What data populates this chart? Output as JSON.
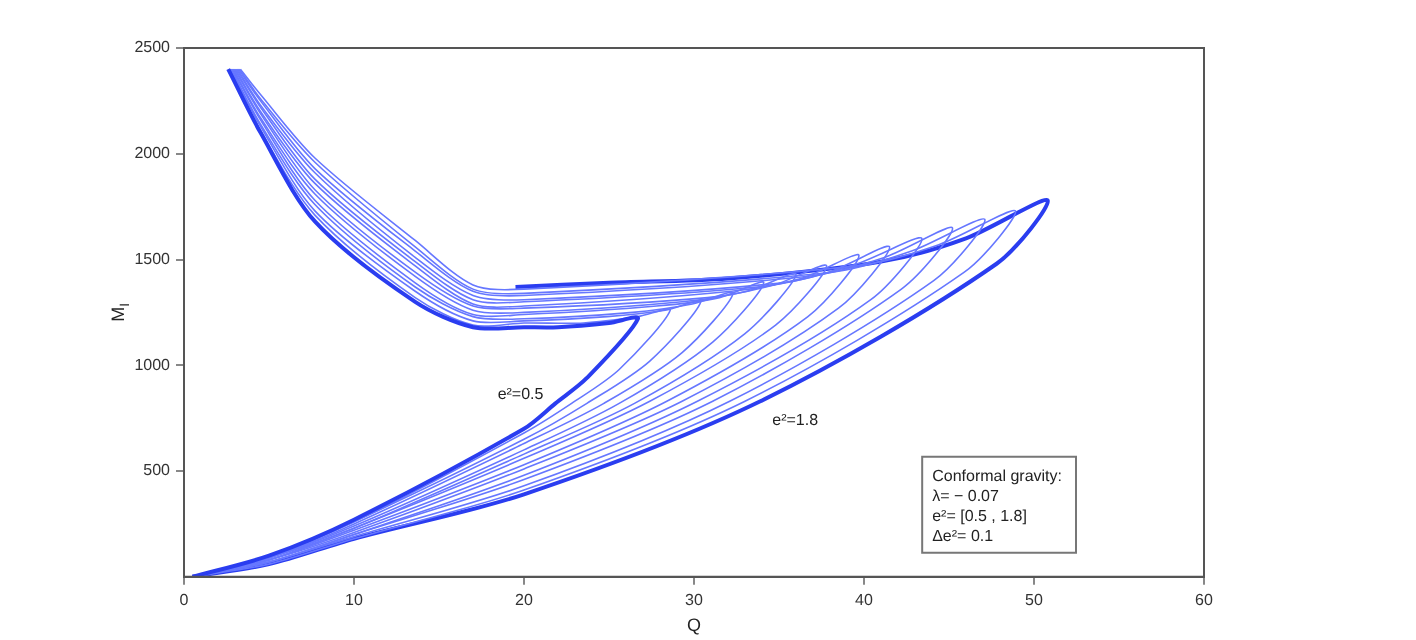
{
  "chart_data": {
    "type": "line",
    "xlabel": "Q",
    "ylabel": "M$_{I}$",
    "xlim": [
      0,
      60
    ],
    "ylim": [
      0,
      2500
    ],
    "xticks": [
      0,
      10,
      20,
      30,
      40,
      50,
      60
    ],
    "yticks": [
      500,
      1000,
      1500,
      2000,
      2500
    ],
    "grid": false,
    "legend": false,
    "marker": "none",
    "line_style": "solid",
    "annotations": [
      "Conformal gravity:",
      "λ= − 0.07",
      "e²= [0.5 , 1.8]",
      "Δe²= 0.1"
    ],
    "series": [
      {
        "name": "e²=0.5",
        "color": "#2a3df0",
        "x": [
          0.5,
          5,
          10,
          20,
          21.85,
          23.7,
          26.7,
          25.0,
          22.0,
          20,
          17,
          13.6,
          7.7,
          4.5,
          2.6
        ],
        "values": [
          0,
          100,
          270,
          700,
          820,
          940,
          1220,
          1200,
          1180,
          1180,
          1180,
          1300,
          1680,
          2100,
          2400
        ]
      },
      {
        "color": "#6677ff",
        "x": [
          0.5,
          5,
          10,
          20,
          22.8,
          25.6,
          28.6,
          26.7,
          23.5,
          20,
          17,
          13.6,
          7.7,
          4.5,
          2.66
        ],
        "values": [
          0,
          100,
          260,
          680,
          820,
          980,
          1260,
          1230,
          1200,
          1200,
          1190,
          1320,
          1710,
          2110,
          2400
        ]
      },
      {
        "color": "#6677ff",
        "x": [
          0.5,
          5,
          10,
          20,
          23.7,
          27.4,
          30.4,
          28.3,
          24.9,
          20,
          17,
          13.6,
          7.7,
          4.5,
          2.72
        ],
        "values": [
          0,
          90,
          260,
          650,
          820,
          1020,
          1300,
          1260,
          1230,
          1210,
          1210,
          1350,
          1730,
          2130,
          2400
        ]
      },
      {
        "color": "#6677ff",
        "x": [
          0.5,
          5,
          10,
          20,
          24.7,
          29.3,
          32.3,
          29.9,
          26.4,
          20,
          17,
          13.6,
          7.7,
          4.5,
          2.78
        ],
        "values": [
          0,
          90,
          250,
          630,
          820,
          1060,
          1340,
          1290,
          1250,
          1220,
          1230,
          1370,
          1760,
          2140,
          2400
        ]
      },
      {
        "color": "#6677ff",
        "x": [
          0.5,
          5,
          10,
          20,
          25.6,
          31.1,
          34.1,
          31.5,
          27.8,
          20,
          17,
          13.6,
          7.7,
          4.5,
          2.84
        ],
        "values": [
          0,
          90,
          240,
          600,
          820,
          1110,
          1390,
          1320,
          1280,
          1240,
          1240,
          1390,
          1780,
          2160,
          2400
        ]
      },
      {
        "color": "#6677ff",
        "x": [
          0.5,
          5,
          10,
          20,
          26.5,
          33.0,
          36.0,
          33.1,
          29.3,
          20,
          17,
          13.6,
          7.7,
          4.5,
          2.9
        ],
        "values": [
          0,
          90,
          230,
          580,
          820,
          1150,
          1430,
          1350,
          1300,
          1250,
          1260,
          1420,
          1810,
          2170,
          2400
        ]
      },
      {
        "color": "#6677ff",
        "x": [
          0.5,
          5,
          10,
          20,
          27.4,
          34.8,
          37.8,
          34.7,
          30.8,
          20,
          17,
          13.6,
          7.7,
          4.5,
          2.96
        ],
        "values": [
          0,
          80,
          230,
          560,
          830,
          1190,
          1470,
          1380,
          1320,
          1270,
          1280,
          1440,
          1830,
          2190,
          2400
        ]
      },
      {
        "color": "#6677ff",
        "x": [
          0.5,
          5,
          10,
          20,
          28.4,
          36.7,
          39.7,
          36.3,
          32.2,
          20,
          17,
          13.6,
          7.7,
          4.5,
          3.02
        ],
        "values": [
          0,
          80,
          220,
          530,
          830,
          1230,
          1520,
          1410,
          1350,
          1280,
          1290,
          1470,
          1860,
          2200,
          2400
        ]
      },
      {
        "color": "#6677ff",
        "x": [
          0.5,
          5,
          10,
          20,
          29.3,
          38.5,
          41.5,
          37.9,
          33.7,
          20,
          17,
          13.6,
          7.7,
          4.5,
          3.08
        ],
        "values": [
          0,
          80,
          210,
          510,
          830,
          1270,
          1560,
          1440,
          1370,
          1300,
          1310,
          1490,
          1880,
          2220,
          2400
        ]
      },
      {
        "color": "#6677ff",
        "x": [
          0.5,
          5,
          10,
          20,
          30.2,
          40.4,
          43.4,
          39.6,
          35.2,
          20,
          17,
          13.6,
          7.7,
          4.5,
          3.14
        ],
        "values": [
          0,
          70,
          200,
          480,
          830,
          1310,
          1600,
          1480,
          1390,
          1310,
          1330,
          1510,
          1910,
          2230,
          2400
        ]
      },
      {
        "color": "#6677ff",
        "x": [
          0.5,
          5,
          10,
          20,
          31.1,
          42.2,
          45.2,
          41.2,
          36.6,
          20,
          17,
          13.6,
          7.7,
          4.5,
          3.2
        ],
        "values": [
          0,
          70,
          200,
          460,
          830,
          1360,
          1650,
          1510,
          1420,
          1330,
          1350,
          1540,
          1930,
          2250,
          2400
        ]
      },
      {
        "color": "#6677ff",
        "x": [
          0.5,
          5,
          10,
          20,
          32.1,
          44.1,
          47.1,
          42.8,
          38.1,
          20,
          17,
          13.6,
          7.7,
          4.5,
          3.26
        ],
        "values": [
          0,
          70,
          190,
          430,
          830,
          1400,
          1690,
          1540,
          1440,
          1340,
          1360,
          1560,
          1960,
          2260,
          2400
        ]
      },
      {
        "color": "#6677ff",
        "x": [
          0.5,
          5,
          10,
          20,
          33.0,
          45.9,
          48.9,
          44.4,
          39.6,
          20,
          17,
          13.6,
          7.7,
          4.5,
          3.32
        ],
        "values": [
          0,
          60,
          180,
          410,
          830,
          1440,
          1730,
          1570,
          1470,
          1360,
          1380,
          1590,
          1980,
          2280,
          2400
        ]
      },
      {
        "name": "e²=1.8",
        "color": "#2a3df0",
        "x": [
          0.5,
          5,
          10,
          20,
          33.9,
          47.8,
          50.8,
          46.0,
          41.0,
          32,
          25,
          19.5
        ],
        "values": [
          0,
          60,
          180,
          390,
          830,
          1480,
          1780,
          1600,
          1490,
          1410,
          1390,
          1370
        ]
      }
    ]
  }
}
